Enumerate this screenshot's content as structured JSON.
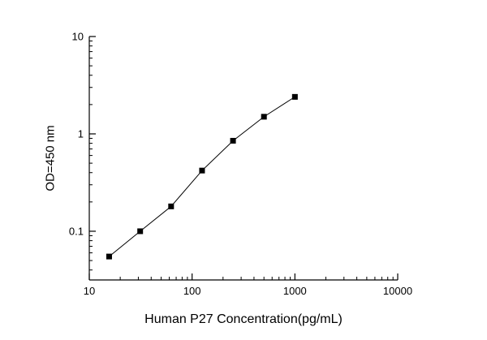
{
  "chart_data": {
    "type": "line",
    "title": "",
    "xlabel": "Human P27 Concentration(pg/mL)",
    "ylabel": "OD=450 nm",
    "xscale": "log",
    "yscale": "log",
    "xlim": [
      10,
      10000
    ],
    "ylim": [
      0.0316,
      10
    ],
    "x": [
      15.6,
      31.25,
      62.5,
      125,
      250,
      500,
      1000
    ],
    "y": [
      0.055,
      0.1,
      0.18,
      0.42,
      0.85,
      1.5,
      2.4
    ],
    "x_ticks": [
      10,
      100,
      1000,
      10000
    ],
    "x_tick_labels": [
      "10",
      "100",
      "1000",
      "10000"
    ],
    "y_ticks": [
      0.1,
      1,
      10
    ],
    "y_tick_labels": [
      "0.1",
      "1",
      "10"
    ],
    "marker": "square",
    "marker_size": 7,
    "line_color": "#000000",
    "marker_color": "#000000",
    "axis_color": "#000000",
    "grid": false,
    "legend": null
  }
}
